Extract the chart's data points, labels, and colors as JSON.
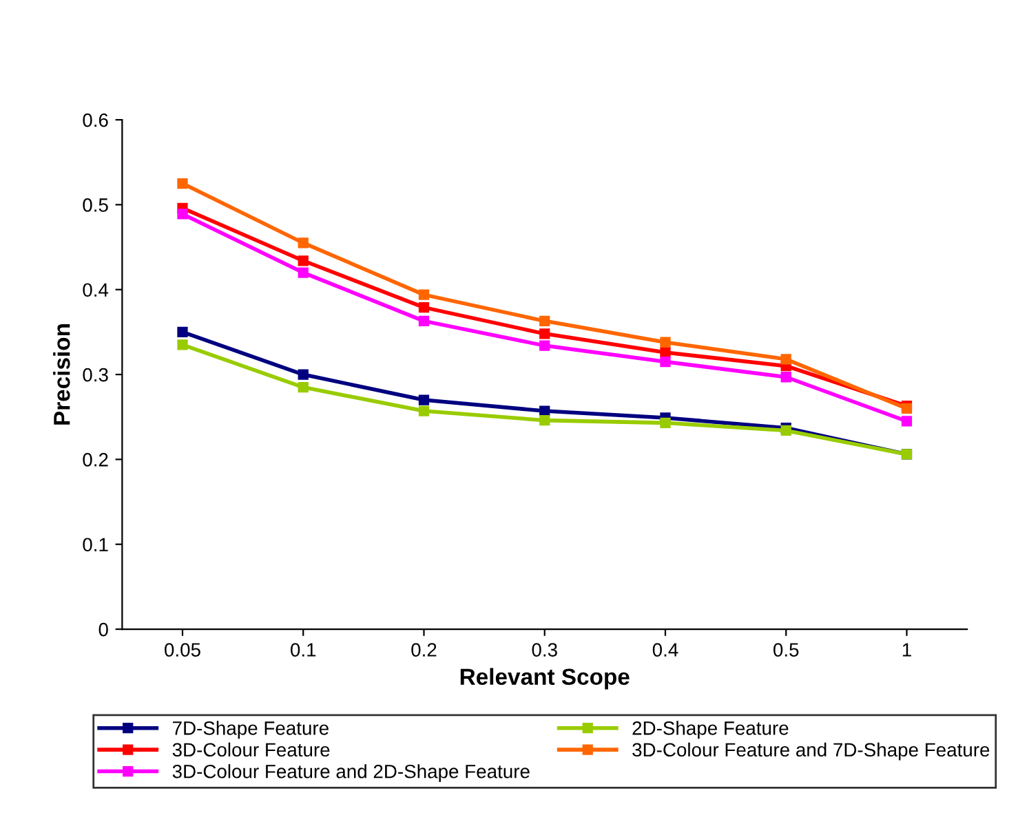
{
  "chart_data": {
    "type": "line",
    "xlabel": "Relevant Scope",
    "ylabel": "Precision",
    "categories": [
      "0.05",
      "0.1",
      "0.2",
      "0.3",
      "0.4",
      "0.5",
      "1"
    ],
    "series": [
      {
        "name": "7D-Shape Feature",
        "color": "#000080",
        "values": [
          0.35,
          0.3,
          0.27,
          0.257,
          0.249,
          0.237,
          0.206
        ]
      },
      {
        "name": "2D-Shape Feature",
        "color": "#99cc00",
        "values": [
          0.335,
          0.285,
          0.257,
          0.246,
          0.243,
          0.234,
          0.206
        ]
      },
      {
        "name": "3D-Colour Feature",
        "color": "#ff0000",
        "values": [
          0.496,
          0.434,
          0.379,
          0.348,
          0.326,
          0.31,
          0.263
        ]
      },
      {
        "name": "3D-Colour Feature and 7D-Shape Feature",
        "color": "#ff6600",
        "values": [
          0.525,
          0.455,
          0.394,
          0.363,
          0.338,
          0.318,
          0.26
        ]
      },
      {
        "name": "3D-Colour Feature and 2D-Shape Feature",
        "color": "#ff00ff",
        "values": [
          0.489,
          0.42,
          0.363,
          0.334,
          0.315,
          0.297,
          0.245
        ]
      }
    ],
    "ylim": [
      0,
      0.6
    ],
    "yticks": [
      0,
      0.1,
      0.2,
      0.3,
      0.4,
      0.5,
      0.6
    ],
    "legend": "bottom",
    "marker": "square",
    "line_style": "solid",
    "grid": false
  }
}
